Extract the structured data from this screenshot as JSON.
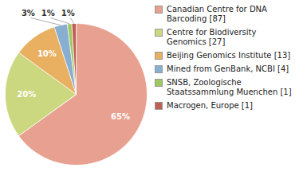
{
  "chart_data": {
    "type": "pie",
    "categories": [
      "Canadian Centre for DNA\nBarcoding [87]",
      "Centre for Biodiversity\nGenomics [27]",
      "Beijing Genomics Institute [13]",
      "Mined from GenBank, NCBI [4]",
      "SNSB, Zoologische\nStaatssammlung Muenchen [1]",
      "Macrogen, Europe [1]"
    ],
    "values": [
      65,
      20,
      10,
      3,
      1,
      1
    ],
    "value_labels": [
      "65%",
      "20%",
      "10%",
      "3%",
      "1%",
      "1%"
    ],
    "colors": [
      "#e8a090",
      "#ccd880",
      "#e8b060",
      "#88aed0",
      "#a0c860",
      "#c06055"
    ],
    "data_labels": true,
    "legend": "right"
  }
}
